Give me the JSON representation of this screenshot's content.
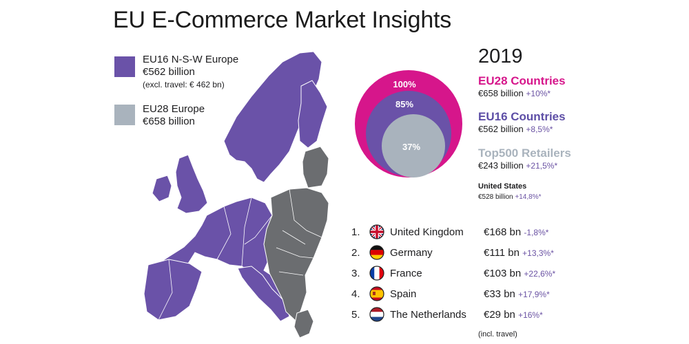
{
  "title": "EU E-Commerce Market Insights",
  "legend": {
    "eu16": {
      "label": "EU16 N-S-W Europe",
      "value": "€562 billion",
      "note": "(excl. travel: € 462 bn)",
      "color": "#6a52a8"
    },
    "eu28": {
      "label": "EU28 Europe",
      "value": "€658 billion",
      "color": "#a9b3bd"
    }
  },
  "bubbles": [
    {
      "label": "100%",
      "color": "#d6168b"
    },
    {
      "label": "85%",
      "color": "#6a52a8"
    },
    {
      "label": "37%",
      "color": "#a9b3bd"
    }
  ],
  "year": "2019",
  "stats": [
    {
      "heading": "EU28 Countries",
      "value": "€658 billion",
      "growth": "+10%*",
      "color": "#d6168b"
    },
    {
      "heading": "EU16 Countries",
      "value": "€562 billion",
      "growth": "+8,5%*",
      "color": "#5d4ea6"
    },
    {
      "heading": "Top500 Retailers",
      "value": "€243 billion",
      "growth": "+21,5%*",
      "color": "#a9b3bd"
    }
  ],
  "us": {
    "heading": "United States",
    "value": "€528 billion",
    "growth": "+14,8%*"
  },
  "ranking": [
    {
      "rank": "1.",
      "country": "United Kingdom",
      "value": "€168 bn",
      "growth": "-1,8%*",
      "flag": "uk-flag-icon"
    },
    {
      "rank": "2.",
      "country": "Germany",
      "value": "€111 bn",
      "growth": "+13,3%*",
      "flag": "germany-flag-icon"
    },
    {
      "rank": "3.",
      "country": "France",
      "value": "€103 bn",
      "growth": "+22,6%*",
      "flag": "france-flag-icon"
    },
    {
      "rank": "4.",
      "country": "Spain",
      "value": "€33 bn",
      "growth": "+17,9%*",
      "flag": "spain-flag-icon"
    },
    {
      "rank": "5.",
      "country": "The Netherlands",
      "value": "€29 bn",
      "growth": "+16%*",
      "flag": "netherlands-flag-icon"
    }
  ],
  "footnote": "(incl. travel)"
}
